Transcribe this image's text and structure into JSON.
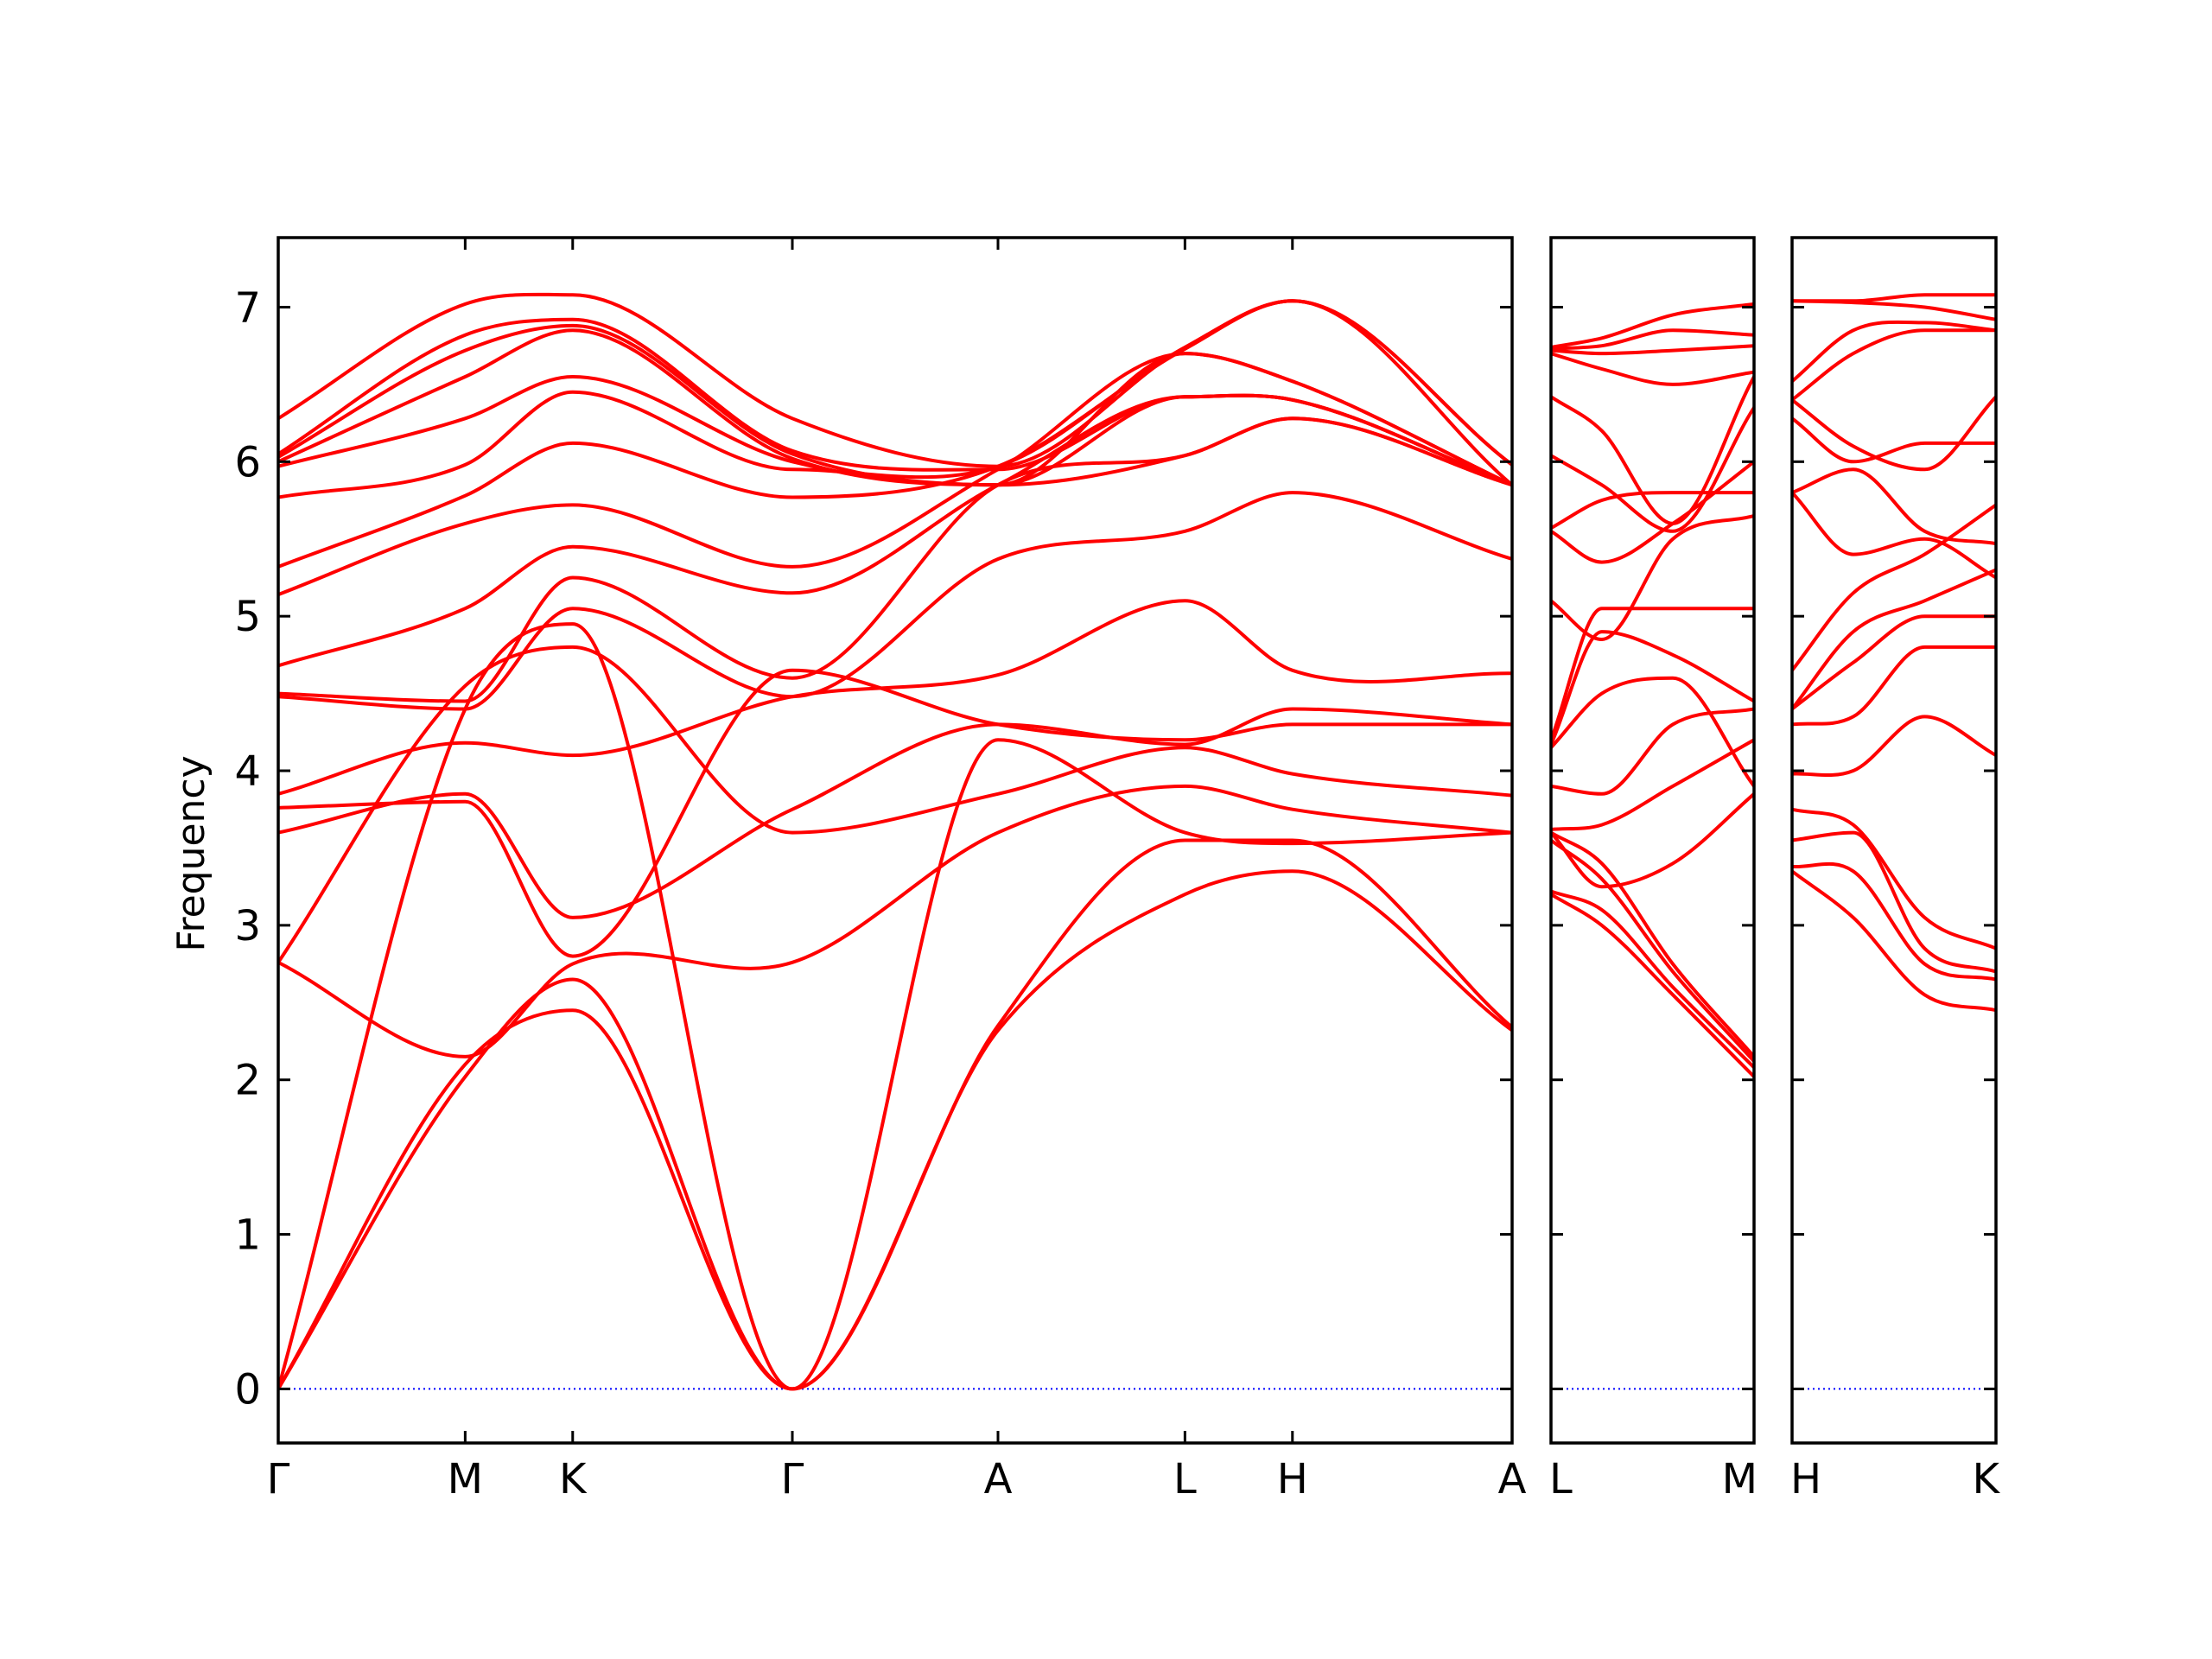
{
  "chart_data": {
    "type": "line",
    "ylabel": "Frequency",
    "xlabel": "",
    "ylim": [
      -0.35,
      7.45
    ],
    "yticks": [
      0,
      1,
      2,
      3,
      4,
      5,
      6,
      7
    ],
    "colors": {
      "band": "#ff0000",
      "zero_line": "#0000ff",
      "axes": "#000000"
    },
    "grid": false,
    "zero_line": true,
    "panels": [
      {
        "id": "p1",
        "xticks": [
          {
            "x": 0,
            "label": "Γ"
          },
          {
            "x": 2,
            "label": "M"
          },
          {
            "x": 3.15,
            "label": "K"
          },
          {
            "x": 5.5,
            "label": "Γ"
          },
          {
            "x": 7.7,
            "label": "A"
          },
          {
            "x": 9.7,
            "label": "L"
          },
          {
            "x": 10.85,
            "label": "H"
          },
          {
            "x": 13.2,
            "label": "A"
          }
        ],
        "bands": [
          {
            "x": [
              0,
              2,
              3.15,
              5.5,
              7.7,
              9.7,
              10.85,
              13.2
            ],
            "y": [
              0,
              2.02,
              2.65,
              0,
              2.32,
              3.2,
              3.35,
              2.32
            ]
          },
          {
            "x": [
              0,
              2,
              3.15,
              5.5,
              7.7,
              9.7,
              10.85,
              13.2
            ],
            "y": [
              0,
              2.1,
              2.45,
              0,
              2.35,
              3.55,
              3.55,
              2.34
            ]
          },
          {
            "x": [
              0,
              2,
              3.15,
              5.5,
              7.7,
              9.7,
              10.85,
              13.2
            ],
            "y": [
              0,
              4.4,
              4.95,
              0,
              4.2,
              3.6,
              3.53,
              3.6
            ]
          },
          {
            "x": [
              0,
              2,
              3.15,
              5.5,
              7.7,
              9.7,
              10.85,
              13.2
            ],
            "y": [
              2.76,
              2.15,
              2.75,
              2.76,
              3.6,
              3.9,
              3.75,
              3.6
            ]
          },
          {
            "x": [
              0,
              2,
              3.15,
              5.5,
              7.7,
              9.7,
              10.85,
              13.2
            ],
            "y": [
              2.76,
              4.55,
              4.8,
              3.6,
              3.85,
              4.15,
              3.98,
              3.84
            ]
          },
          {
            "x": [
              0,
              2,
              3.15,
              5.5,
              7.7,
              9.7,
              10.85,
              13.2
            ],
            "y": [
              3.6,
              3.85,
              3.05,
              3.75,
              4.3,
              4.17,
              4.4,
              4.3
            ]
          },
          {
            "x": [
              0,
              2,
              3.15,
              5.5,
              7.7,
              9.7,
              10.85,
              13.2
            ],
            "y": [
              3.76,
              3.8,
              2.8,
              4.65,
              4.3,
              4.2,
              4.3,
              4.3
            ]
          },
          {
            "x": [
              0,
              2,
              3.15,
              5.5,
              7.7,
              9.7,
              10.85,
              13.2
            ],
            "y": [
              3.85,
              4.18,
              4.1,
              4.48,
              4.62,
              5.1,
              4.65,
              4.63
            ]
          },
          {
            "x": [
              0,
              2,
              3.15,
              5.5,
              7.7,
              9.7,
              10.85,
              13.2
            ],
            "y": [
              4.48,
              4.4,
              5.05,
              4.48,
              5.37,
              5.55,
              5.8,
              5.37
            ]
          },
          {
            "x": [
              0,
              2,
              3.15,
              5.5,
              7.7,
              9.7,
              10.85,
              13.2
            ],
            "y": [
              4.5,
              4.45,
              5.25,
              4.6,
              5.85,
              6.04,
              6.28,
              5.85
            ]
          },
          {
            "x": [
              0,
              2,
              3.15,
              5.5,
              7.7,
              9.7,
              10.85,
              13.2
            ],
            "y": [
              4.68,
              5.05,
              5.45,
              5.15,
              5.85,
              6.42,
              6.4,
              5.85
            ]
          },
          {
            "x": [
              0,
              2,
              3.15,
              5.5,
              7.7,
              9.7,
              10.85,
              13.2
            ],
            "y": [
              5.14,
              5.6,
              5.72,
              5.32,
              5.95,
              6.7,
              6.52,
              5.85
            ]
          },
          {
            "x": [
              0,
              2,
              3.15,
              5.5,
              7.7,
              9.7,
              10.85,
              13.2
            ],
            "y": [
              5.32,
              5.78,
              6.12,
              5.77,
              5.97,
              6.73,
              7.04,
              5.85
            ]
          },
          {
            "x": [
              0,
              2,
              3.15,
              5.5,
              7.7,
              9.7,
              10.85,
              13.2
            ],
            "y": [
              5.77,
              5.98,
              6.45,
              5.95,
              5.97,
              6.74,
              7.04,
              5.98
            ]
          },
          {
            "x": [
              0,
              2,
              3.15,
              5.5,
              7.7,
              9.7,
              10.85,
              13.2
            ],
            "y": [
              5.97,
              6.28,
              6.55,
              6.0,
              5.85,
              6.7,
              6.52,
              5.85
            ]
          },
          {
            "x": [
              0,
              2,
              3.15,
              5.5,
              7.7,
              9.7,
              10.85,
              13.2
            ],
            "y": [
              6.0,
              6.55,
              6.85,
              6.02,
              5.85,
              6.42,
              6.4,
              5.85
            ]
          },
          {
            "x": [
              0,
              2,
              3.15,
              5.5,
              7.7,
              9.7,
              10.85,
              13.2
            ],
            "y": [
              6.03,
              6.72,
              6.88,
              6.05,
              5.85,
              6.04,
              6.28,
              5.85
            ]
          },
          {
            "x": [
              0,
              2,
              3.15,
              5.5,
              7.7,
              9.7,
              10.85,
              13.2
            ],
            "y": [
              6.05,
              6.82,
              6.92,
              6.07,
              5.95,
              6.42,
              6.4,
              5.85
            ]
          },
          {
            "x": [
              0,
              2,
              3.15,
              5.5,
              7.7,
              9.7,
              10.85,
              13.2
            ],
            "y": [
              6.28,
              7.02,
              7.08,
              6.28,
              5.97,
              6.74,
              7.04,
              5.98
            ]
          }
        ]
      },
      {
        "id": "p2",
        "xticks": [
          {
            "x": 0,
            "label": "L"
          },
          {
            "x": 1,
            "label": "M"
          }
        ],
        "bands": [
          {
            "x": [
              0,
              0.25,
              0.6,
              1
            ],
            "y": [
              3.2,
              3.0,
              2.55,
              2.02
            ]
          },
          {
            "x": [
              0,
              0.25,
              0.6,
              1
            ],
            "y": [
              3.22,
              3.1,
              2.6,
              2.08
            ]
          },
          {
            "x": [
              0,
              0.25,
              0.6,
              1
            ],
            "y": [
              3.55,
              3.3,
              2.7,
              2.12
            ]
          },
          {
            "x": [
              0,
              0.25,
              0.6,
              1
            ],
            "y": [
              3.6,
              3.4,
              2.75,
              2.15
            ]
          },
          {
            "x": [
              0,
              0.25,
              0.6,
              1
            ],
            "y": [
              3.6,
              3.25,
              3.4,
              3.85
            ]
          },
          {
            "x": [
              0,
              0.25,
              0.6,
              1
            ],
            "y": [
              3.62,
              3.65,
              3.9,
              4.2
            ]
          },
          {
            "x": [
              0,
              0.25,
              0.6,
              1
            ],
            "y": [
              3.9,
              3.85,
              4.3,
              4.4
            ]
          },
          {
            "x": [
              0,
              0.25,
              0.6,
              1
            ],
            "y": [
              4.15,
              4.5,
              4.6,
              3.9
            ]
          },
          {
            "x": [
              0,
              0.25,
              0.6,
              1
            ],
            "y": [
              4.17,
              4.9,
              4.75,
              4.45
            ]
          },
          {
            "x": [
              0,
              0.25,
              0.6,
              1
            ],
            "y": [
              4.2,
              5.05,
              5.05,
              5.05
            ]
          },
          {
            "x": [
              0,
              0.25,
              0.6,
              1
            ],
            "y": [
              5.1,
              4.85,
              5.5,
              5.65
            ]
          },
          {
            "x": [
              0,
              0.25,
              0.6,
              1
            ],
            "y": [
              5.55,
              5.35,
              5.6,
              6.0
            ]
          },
          {
            "x": [
              0,
              0.25,
              0.6,
              1
            ],
            "y": [
              5.57,
              5.75,
              5.8,
              5.8
            ]
          },
          {
            "x": [
              0,
              0.25,
              0.6,
              1
            ],
            "y": [
              6.04,
              5.85,
              5.55,
              6.35
            ]
          },
          {
            "x": [
              0,
              0.25,
              0.6,
              1
            ],
            "y": [
              6.42,
              6.2,
              5.6,
              6.55
            ]
          },
          {
            "x": [
              0,
              0.25,
              0.6,
              1
            ],
            "y": [
              6.7,
              6.6,
              6.5,
              6.58
            ]
          },
          {
            "x": [
              0,
              0.25,
              0.6,
              1
            ],
            "y": [
              6.72,
              6.7,
              6.72,
              6.75
            ]
          },
          {
            "x": [
              0,
              0.25,
              0.6,
              1
            ],
            "y": [
              6.73,
              6.75,
              6.85,
              6.82
            ]
          },
          {
            "x": [
              0,
              0.25,
              0.6,
              1
            ],
            "y": [
              6.74,
              6.8,
              6.95,
              7.02
            ]
          }
        ]
      },
      {
        "id": "p3",
        "xticks": [
          {
            "x": 0,
            "label": "H"
          },
          {
            "x": 1,
            "label": "K"
          }
        ],
        "bands": [
          {
            "x": [
              0,
              0.3,
              0.65,
              1
            ],
            "y": [
              3.35,
              3.05,
              2.55,
              2.45
            ]
          },
          {
            "x": [
              0,
              0.3,
              0.65,
              1
            ],
            "y": [
              3.38,
              3.35,
              2.75,
              2.65
            ]
          },
          {
            "x": [
              0,
              0.3,
              0.65,
              1
            ],
            "y": [
              3.55,
              3.6,
              2.85,
              2.7
            ]
          },
          {
            "x": [
              0,
              0.3,
              0.65,
              1
            ],
            "y": [
              3.75,
              3.65,
              3.05,
              2.85
            ]
          },
          {
            "x": [
              0,
              0.3,
              0.65,
              1
            ],
            "y": [
              3.98,
              4.0,
              4.35,
              4.1
            ]
          },
          {
            "x": [
              0,
              0.3,
              0.65,
              1
            ],
            "y": [
              4.3,
              4.35,
              4.8,
              4.8
            ]
          },
          {
            "x": [
              0,
              0.3,
              0.65,
              1
            ],
            "y": [
              4.4,
              4.7,
              5.0,
              5.0
            ]
          },
          {
            "x": [
              0,
              0.3,
              0.65,
              1
            ],
            "y": [
              4.4,
              4.9,
              5.1,
              5.3
            ]
          },
          {
            "x": [
              0,
              0.3,
              0.65,
              1
            ],
            "y": [
              4.65,
              5.15,
              5.4,
              5.72
            ]
          },
          {
            "x": [
              0,
              0.3,
              0.65,
              1
            ],
            "y": [
              5.8,
              5.4,
              5.5,
              5.25
            ]
          },
          {
            "x": [
              0,
              0.3,
              0.65,
              1
            ],
            "y": [
              5.8,
              5.95,
              5.55,
              5.47
            ]
          },
          {
            "x": [
              0,
              0.3,
              0.65,
              1
            ],
            "y": [
              6.28,
              6.0,
              6.12,
              6.12
            ]
          },
          {
            "x": [
              0,
              0.3,
              0.65,
              1
            ],
            "y": [
              6.4,
              6.1,
              5.95,
              6.42
            ]
          },
          {
            "x": [
              0,
              0.3,
              0.65,
              1
            ],
            "y": [
              6.4,
              6.7,
              6.85,
              6.85
            ]
          },
          {
            "x": [
              0,
              0.3,
              0.65,
              1
            ],
            "y": [
              6.52,
              6.85,
              6.9,
              6.85
            ]
          },
          {
            "x": [
              0,
              0.3,
              0.65,
              1
            ],
            "y": [
              7.04,
              7.03,
              7.0,
              6.92
            ]
          },
          {
            "x": [
              0,
              0.3,
              0.65,
              1
            ],
            "y": [
              7.04,
              7.04,
              7.08,
              7.08
            ]
          }
        ]
      }
    ]
  }
}
